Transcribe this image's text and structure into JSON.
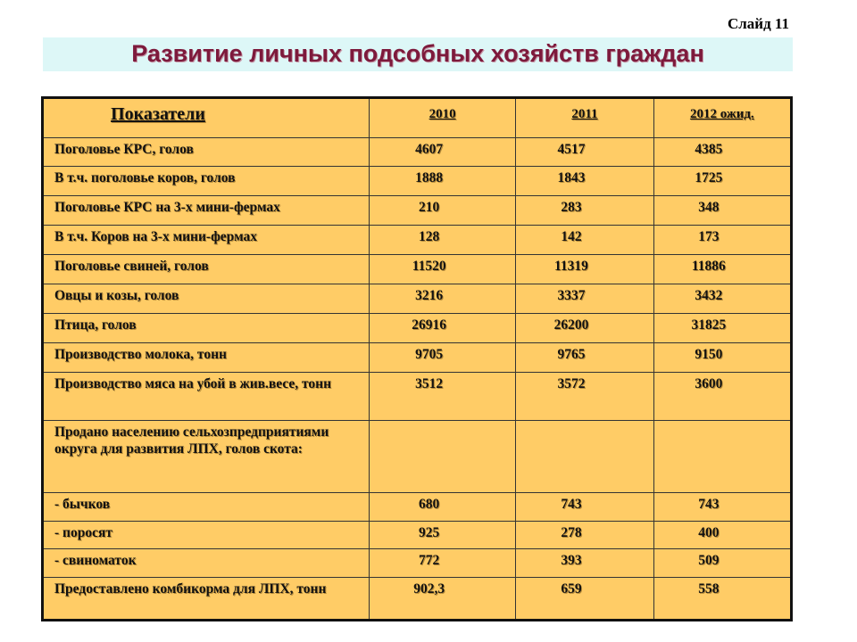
{
  "slide_label": "Слайд 11",
  "title": "Развитие личных подсобных хозяйств граждан",
  "table": {
    "header": [
      "Показатели",
      "2010",
      "2011",
      "2012 ожид."
    ],
    "rows": [
      [
        "Поголовье КРС, голов",
        "4607",
        "4517",
        "4385"
      ],
      [
        "В т.ч. поголовье коров, голов",
        "1888",
        "1843",
        "1725"
      ],
      [
        "Поголовье КРС на 3-х мини-фермах",
        "210",
        "283",
        "348"
      ],
      [
        "В т.ч.  Коров на 3-х мини-фермах",
        "128",
        "142",
        "173"
      ],
      [
        "Поголовье свиней, голов",
        "11520",
        "11319",
        "11886"
      ],
      [
        "Овцы и козы, голов",
        "3216",
        "3337",
        "3432"
      ],
      [
        "Птица, голов",
        "26916",
        "26200",
        "31825"
      ],
      [
        "Производство молока, тонн",
        "9705",
        "9765",
        "9150"
      ],
      [
        "Производство мяса на убой в жив.весе, тонн",
        "3512",
        "3572",
        "3600"
      ],
      [
        "Продано  населению сельхозпредприятиями округа для развития ЛПХ, голов скота:"
      ],
      [
        "- бычков",
        "680",
        "743",
        "743"
      ],
      [
        "- поросят",
        "925",
        "278",
        "400"
      ],
      [
        "- свиноматок",
        "772",
        "393",
        "509"
      ],
      [
        "Предоставлено комбикорма для ЛПХ, тонн",
        "902,3",
        "659",
        "558"
      ]
    ]
  }
}
